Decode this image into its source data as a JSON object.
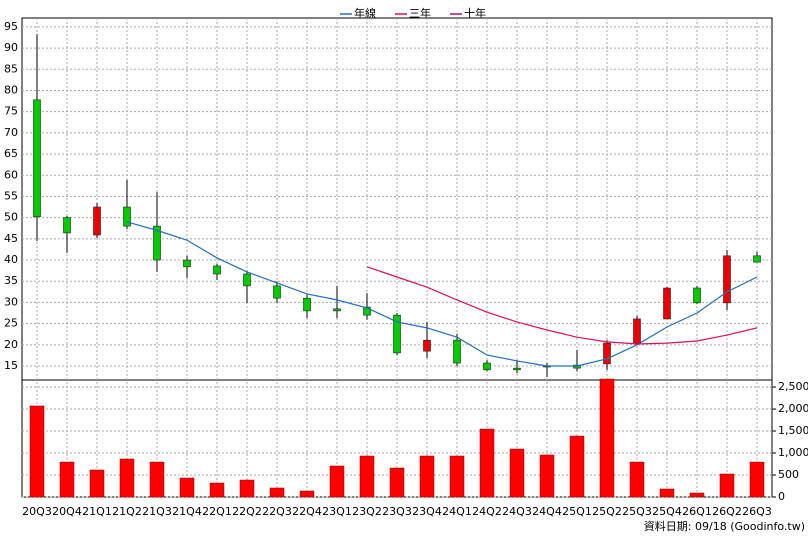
{
  "chart_data": {
    "type": "candlestick",
    "categories": [
      "20Q3",
      "20Q4",
      "21Q1",
      "21Q2",
      "21Q3",
      "21Q4",
      "22Q1",
      "22Q2",
      "22Q3",
      "22Q4",
      "23Q1",
      "23Q2",
      "23Q3",
      "23Q4",
      "24Q1",
      "24Q2",
      "24Q3",
      "24Q4",
      "25Q1",
      "25Q2",
      "25Q3",
      "25Q4",
      "26Q1",
      "26Q2",
      "26Q3"
    ],
    "open": [
      77.8,
      50,
      45.9,
      52.5,
      48,
      40,
      38.6,
      36.7,
      33.9,
      31,
      28.5,
      28.9,
      27,
      18.5,
      21.1,
      15.7,
      14.5,
      15,
      15.2,
      15.5,
      20.4,
      26.1,
      33.4,
      29.9,
      41
    ],
    "close": [
      50.2,
      46.4,
      52.5,
      48,
      40,
      38.4,
      36.7,
      33.9,
      31,
      28,
      28,
      27,
      18.1,
      21.1,
      15.7,
      14.1,
      14.1,
      14.8,
      14.5,
      20.4,
      26.1,
      33.4,
      29.9,
      41,
      39.5
    ],
    "high": [
      93.3,
      50.4,
      53.5,
      58.9,
      56,
      41,
      39.1,
      37.4,
      35,
      31.8,
      33.9,
      32.2,
      27.5,
      25.4,
      22.6,
      16.4,
      16.4,
      15.7,
      18.8,
      21.1,
      26.8,
      33.6,
      33.9,
      42.4,
      41.9
    ],
    "low": [
      44.5,
      41.7,
      45.2,
      47.3,
      37.2,
      35.8,
      35.3,
      29.9,
      29.9,
      26.3,
      26.3,
      25.9,
      17.6,
      16.9,
      15,
      13.8,
      13.3,
      12.4,
      13.8,
      14.1,
      20.4,
      26.1,
      29.6,
      28.2,
      39.5
    ],
    "up_color": "#ee0000",
    "down_color": "#00cc00",
    "series": [
      {
        "name": "年線",
        "color": "#1f6fc4",
        "values": [
          null,
          null,
          null,
          49,
          47,
          44.7,
          40.5,
          37.2,
          34.6,
          32,
          30.6,
          28.7,
          25.4,
          24,
          21.8,
          17.6,
          16.2,
          15,
          15,
          16.7,
          20,
          24.2,
          27.5,
          32.5,
          36
        ]
      },
      {
        "name": "三年",
        "color": "#dd1155",
        "values": [
          null,
          null,
          null,
          null,
          null,
          null,
          null,
          null,
          null,
          null,
          null,
          38.4,
          36,
          33.6,
          30.6,
          27.7,
          25.4,
          23.5,
          21.8,
          20.7,
          20.2,
          20.4,
          20.9,
          22.3,
          24
        ]
      },
      {
        "name": "十年",
        "color": "#aa1177",
        "values": [
          null,
          null,
          null,
          null,
          null,
          null,
          null,
          null,
          null,
          null,
          null,
          null,
          null,
          null,
          null,
          null,
          null,
          null,
          null,
          null,
          null,
          null,
          null,
          null,
          null
        ]
      }
    ],
    "volume": {
      "color": "#ff0000",
      "values": [
        2070,
        795,
        614,
        864,
        795,
        432,
        318,
        386,
        205,
        136,
        705,
        932,
        659,
        932,
        932,
        1545,
        1091,
        955,
        1386,
        2682,
        795,
        182,
        91,
        523,
        795
      ]
    },
    "ylim": [
      11.7,
      97.1
    ],
    "yticks": [
      15,
      20,
      25,
      30,
      35,
      40,
      45,
      50,
      55,
      60,
      65,
      70,
      75,
      80,
      85,
      90,
      95
    ],
    "y2lim": [
      0,
      2660
    ],
    "y2ticks": [
      0,
      500,
      {
        "value": 1000,
        "label": "1,000"
      },
      {
        "value": 1500,
        "label": "1,500"
      },
      {
        "value": 2000,
        "label": "2,000"
      },
      {
        "value": 2500,
        "label": "2,500"
      }
    ],
    "grid": true,
    "footer": "資料日期: 09/18 (Goodinfo.tw)"
  }
}
